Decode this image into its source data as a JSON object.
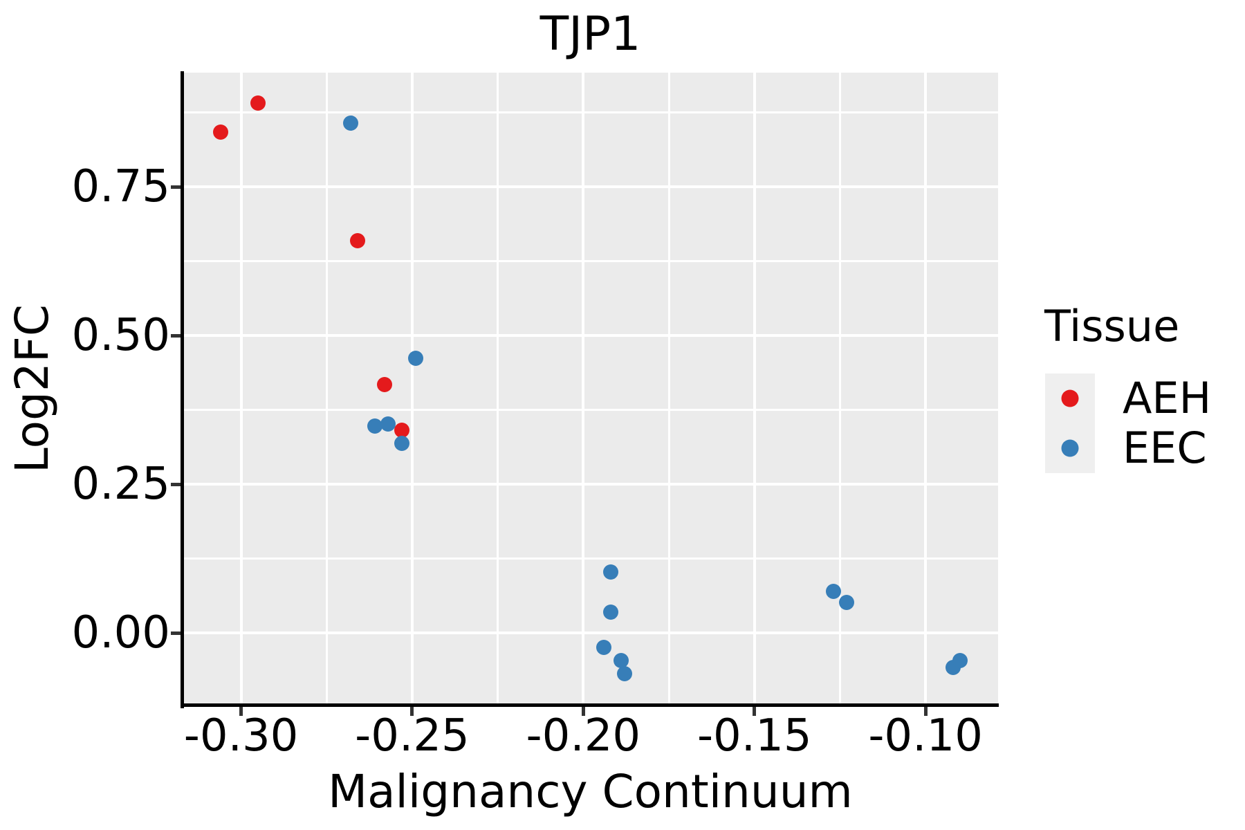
{
  "title": "TJP1",
  "axes": {
    "x": {
      "label": "Malignancy Continuum",
      "ticks": [
        {
          "value": -0.3,
          "label": "-0.30"
        },
        {
          "value": -0.25,
          "label": "-0.25"
        },
        {
          "value": -0.2,
          "label": "-0.20"
        },
        {
          "value": -0.15,
          "label": "-0.15"
        },
        {
          "value": -0.1,
          "label": "-0.10"
        }
      ],
      "minor_ticks": [
        -0.275,
        -0.225,
        -0.175,
        -0.125
      ],
      "lim": [
        -0.3171,
        -0.0788
      ]
    },
    "y": {
      "label": "Log2FC",
      "ticks": [
        {
          "value": 0.0,
          "label": "0.00"
        },
        {
          "value": 0.25,
          "label": "0.25"
        },
        {
          "value": 0.5,
          "label": "0.50"
        },
        {
          "value": 0.75,
          "label": "0.75"
        }
      ],
      "minor_ticks": [
        0.125,
        0.375,
        0.625,
        0.875
      ],
      "lim": [
        -0.1209,
        0.9419
      ]
    }
  },
  "legend": {
    "title": "Tissue",
    "entries": [
      {
        "label": "AEH",
        "color": "#E41A1C"
      },
      {
        "label": "EEC",
        "color": "#377EB8"
      }
    ]
  },
  "colors": {
    "panel_background": "#EBEBEB",
    "gridline": "#FFFFFF",
    "axis_line": "#000000",
    "tick_mark": "#333333",
    "aeh": "#E41A1C",
    "eec": "#377EB8"
  },
  "chart_data": {
    "type": "scatter",
    "title": "TJP1",
    "xlabel": "Malignancy Continuum",
    "ylabel": "Log2FC",
    "xlim": [
      -0.3171,
      -0.0788
    ],
    "ylim": [
      -0.1209,
      0.9419
    ],
    "grid": true,
    "legend_position": "right",
    "legend_title": "Tissue",
    "series": [
      {
        "name": "AEH",
        "color": "#E41A1C",
        "points": [
          [
            -0.306,
            0.842
          ],
          [
            -0.295,
            0.891
          ],
          [
            -0.266,
            0.659
          ],
          [
            -0.258,
            0.417
          ],
          [
            -0.253,
            0.341
          ]
        ]
      },
      {
        "name": "EEC",
        "color": "#377EB8",
        "points": [
          [
            -0.268,
            0.857
          ],
          [
            -0.249,
            0.462
          ],
          [
            -0.261,
            0.348
          ],
          [
            -0.257,
            0.351
          ],
          [
            -0.253,
            0.319
          ],
          [
            -0.192,
            0.102
          ],
          [
            -0.192,
            0.035
          ],
          [
            -0.194,
            -0.024
          ],
          [
            -0.189,
            -0.047
          ],
          [
            -0.188,
            -0.069
          ],
          [
            -0.127,
            0.07
          ],
          [
            -0.123,
            0.051
          ],
          [
            -0.092,
            -0.058
          ],
          [
            -0.09,
            -0.047
          ]
        ]
      }
    ]
  }
}
